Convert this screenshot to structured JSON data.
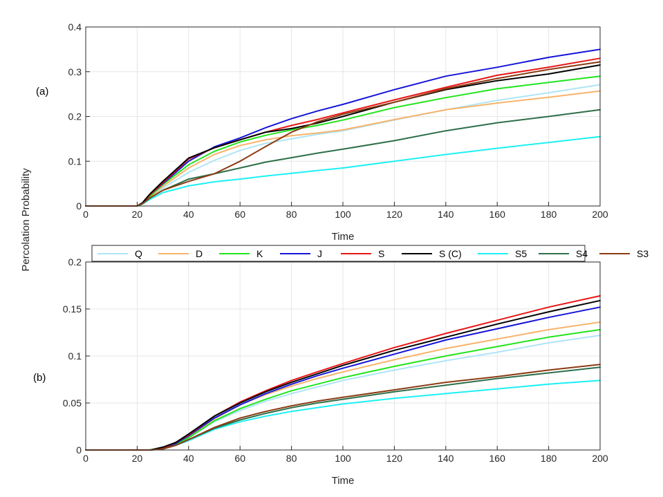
{
  "figure": {
    "ylabel": "Percolation Probability",
    "colors": {
      "Q": "#aee4f8",
      "D": "#f8b36a",
      "K": "#22e41c",
      "J": "#1414d8",
      "S": "#e81414",
      "S (C)": "#000000",
      "S5": "#1cf0f4",
      "S4": "#2c6e49",
      "S3": "#8b3a12"
    }
  },
  "legend": {
    "entries": [
      "Q",
      "D",
      "K",
      "J",
      "S",
      "S (C)",
      "S5",
      "S4",
      "S3"
    ]
  },
  "chart_data": [
    {
      "type": "line",
      "panel_label": "(a)",
      "xlabel": "Time",
      "ylabel": "Percolation Probability",
      "xlim": [
        0,
        200
      ],
      "ylim": [
        0,
        0.4
      ],
      "xticks": [
        0,
        20,
        40,
        60,
        80,
        100,
        120,
        140,
        160,
        180,
        200
      ],
      "yticks": [
        0,
        0.1,
        0.2,
        0.3,
        0.4
      ],
      "x": [
        0,
        20,
        22,
        25,
        30,
        40,
        50,
        60,
        70,
        80,
        90,
        100,
        120,
        140,
        160,
        180,
        200
      ],
      "series": [
        {
          "name": "Q",
          "values": [
            0,
            0,
            0.005,
            0.02,
            0.04,
            0.075,
            0.102,
            0.124,
            0.14,
            0.15,
            0.16,
            0.168,
            0.192,
            0.215,
            0.236,
            0.253,
            0.271
          ]
        },
        {
          "name": "D",
          "values": [
            0,
            0,
            0.005,
            0.02,
            0.044,
            0.085,
            0.115,
            0.135,
            0.148,
            0.157,
            0.163,
            0.17,
            0.193,
            0.215,
            0.23,
            0.243,
            0.257
          ]
        },
        {
          "name": "K",
          "values": [
            0,
            0,
            0.006,
            0.022,
            0.048,
            0.092,
            0.122,
            0.143,
            0.158,
            0.17,
            0.18,
            0.192,
            0.22,
            0.242,
            0.262,
            0.276,
            0.29
          ]
        },
        {
          "name": "J",
          "values": [
            0,
            0,
            0.006,
            0.025,
            0.05,
            0.1,
            0.132,
            0.152,
            0.175,
            0.195,
            0.212,
            0.227,
            0.26,
            0.29,
            0.31,
            0.332,
            0.35
          ]
        },
        {
          "name": "S",
          "values": [
            0,
            0,
            0.006,
            0.025,
            0.052,
            0.105,
            0.13,
            0.148,
            0.165,
            0.18,
            0.193,
            0.208,
            0.237,
            0.265,
            0.292,
            0.31,
            0.33
          ]
        },
        {
          "name": "S (C)",
          "values": [
            0,
            0,
            0.007,
            0.027,
            0.055,
            0.107,
            0.13,
            0.148,
            0.165,
            0.173,
            0.185,
            0.2,
            0.232,
            0.26,
            0.28,
            0.295,
            0.315
          ]
        },
        {
          "name": "S5",
          "values": [
            0,
            0,
            0.004,
            0.015,
            0.03,
            0.045,
            0.054,
            0.06,
            0.067,
            0.073,
            0.079,
            0.085,
            0.1,
            0.115,
            0.129,
            0.142,
            0.155
          ]
        },
        {
          "name": "S4",
          "values": [
            0,
            0,
            0.005,
            0.018,
            0.035,
            0.06,
            0.072,
            0.085,
            0.098,
            0.108,
            0.118,
            0.127,
            0.146,
            0.168,
            0.186,
            0.2,
            0.215
          ]
        },
        {
          "name": "S3",
          "values": [
            0,
            0,
            0.005,
            0.018,
            0.035,
            0.055,
            0.072,
            0.1,
            0.133,
            0.165,
            0.188,
            0.205,
            0.232,
            0.262,
            0.285,
            0.305,
            0.322
          ]
        }
      ]
    },
    {
      "type": "line",
      "panel_label": "(b)",
      "xlabel": "Time",
      "ylabel": "Percolation Probability",
      "xlim": [
        0,
        200
      ],
      "ylim": [
        0,
        0.2
      ],
      "xticks": [
        0,
        20,
        40,
        60,
        80,
        100,
        120,
        140,
        160,
        180,
        200
      ],
      "yticks": [
        0,
        0.05,
        0.1,
        0.15,
        0.2
      ],
      "x": [
        0,
        20,
        25,
        30,
        35,
        40,
        50,
        60,
        70,
        80,
        90,
        100,
        120,
        140,
        160,
        180,
        200
      ],
      "series": [
        {
          "name": "Q",
          "values": [
            0,
            0,
            0,
            0.002,
            0.006,
            0.013,
            0.03,
            0.042,
            0.052,
            0.06,
            0.067,
            0.074,
            0.085,
            0.095,
            0.104,
            0.114,
            0.122
          ]
        },
        {
          "name": "D",
          "values": [
            0,
            0,
            0,
            0.002,
            0.007,
            0.014,
            0.033,
            0.048,
            0.059,
            0.068,
            0.076,
            0.083,
            0.096,
            0.108,
            0.118,
            0.128,
            0.136
          ]
        },
        {
          "name": "K",
          "values": [
            0,
            0,
            0,
            0.002,
            0.006,
            0.013,
            0.031,
            0.044,
            0.054,
            0.063,
            0.07,
            0.077,
            0.089,
            0.1,
            0.11,
            0.12,
            0.128
          ]
        },
        {
          "name": "J",
          "values": [
            0,
            0,
            0,
            0.002,
            0.007,
            0.015,
            0.034,
            0.048,
            0.06,
            0.07,
            0.079,
            0.087,
            0.102,
            0.117,
            0.129,
            0.141,
            0.152
          ]
        },
        {
          "name": "S",
          "values": [
            0,
            0,
            0,
            0.002,
            0.008,
            0.016,
            0.036,
            0.051,
            0.063,
            0.074,
            0.083,
            0.092,
            0.109,
            0.124,
            0.138,
            0.152,
            0.164
          ]
        },
        {
          "name": "S (C)",
          "values": [
            0,
            0,
            0,
            0.003,
            0.008,
            0.017,
            0.036,
            0.05,
            0.062,
            0.072,
            0.081,
            0.09,
            0.106,
            0.12,
            0.134,
            0.147,
            0.159
          ]
        },
        {
          "name": "S5",
          "values": [
            0,
            0,
            0,
            0.001,
            0.005,
            0.01,
            0.022,
            0.03,
            0.036,
            0.041,
            0.045,
            0.049,
            0.055,
            0.06,
            0.065,
            0.07,
            0.074
          ]
        },
        {
          "name": "S4",
          "values": [
            0,
            0,
            0,
            0.001,
            0.005,
            0.011,
            0.023,
            0.032,
            0.039,
            0.045,
            0.05,
            0.054,
            0.062,
            0.069,
            0.076,
            0.082,
            0.088
          ]
        },
        {
          "name": "S3",
          "values": [
            0,
            0,
            0,
            0.001,
            0.005,
            0.011,
            0.024,
            0.034,
            0.041,
            0.047,
            0.052,
            0.056,
            0.064,
            0.072,
            0.078,
            0.085,
            0.091
          ]
        }
      ]
    }
  ]
}
